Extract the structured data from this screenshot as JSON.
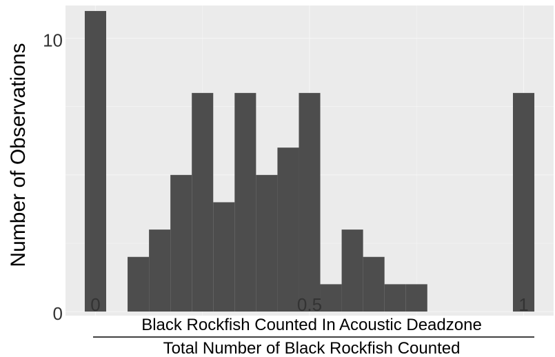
{
  "chart_data": {
    "type": "bar",
    "ylabel": "Number of Observations",
    "xlabel_numerator": "Black Rockfish Counted In Acoustic Deadzone",
    "xlabel_denominator": "Total Number of Black Rockfish Counted",
    "x_ticks": [
      0,
      0.5,
      1
    ],
    "x_tick_labels": [
      "0",
      "0.5",
      "1"
    ],
    "y_ticks": [
      0,
      10
    ],
    "y_tick_labels": [
      "0",
      "10"
    ],
    "xlim": [
      -0.07,
      1.07
    ],
    "ylim": [
      -0.15,
      11.2
    ],
    "bin_width": 0.05,
    "bins": [
      {
        "x": 0.0,
        "count": 11
      },
      {
        "x": 0.1,
        "count": 2
      },
      {
        "x": 0.15,
        "count": 3
      },
      {
        "x": 0.2,
        "count": 5
      },
      {
        "x": 0.25,
        "count": 8
      },
      {
        "x": 0.3,
        "count": 4
      },
      {
        "x": 0.35,
        "count": 8
      },
      {
        "x": 0.4,
        "count": 5
      },
      {
        "x": 0.45,
        "count": 6
      },
      {
        "x": 0.5,
        "count": 8
      },
      {
        "x": 0.55,
        "count": 1
      },
      {
        "x": 0.6,
        "count": 3
      },
      {
        "x": 0.65,
        "count": 2
      },
      {
        "x": 0.7,
        "count": 1
      },
      {
        "x": 0.75,
        "count": 1
      },
      {
        "x": 1.0,
        "count": 8
      }
    ],
    "grid": true,
    "colors": {
      "bar": "#4d4d4d",
      "panel": "#ebebeb",
      "grid": "#f5f5f5"
    }
  }
}
